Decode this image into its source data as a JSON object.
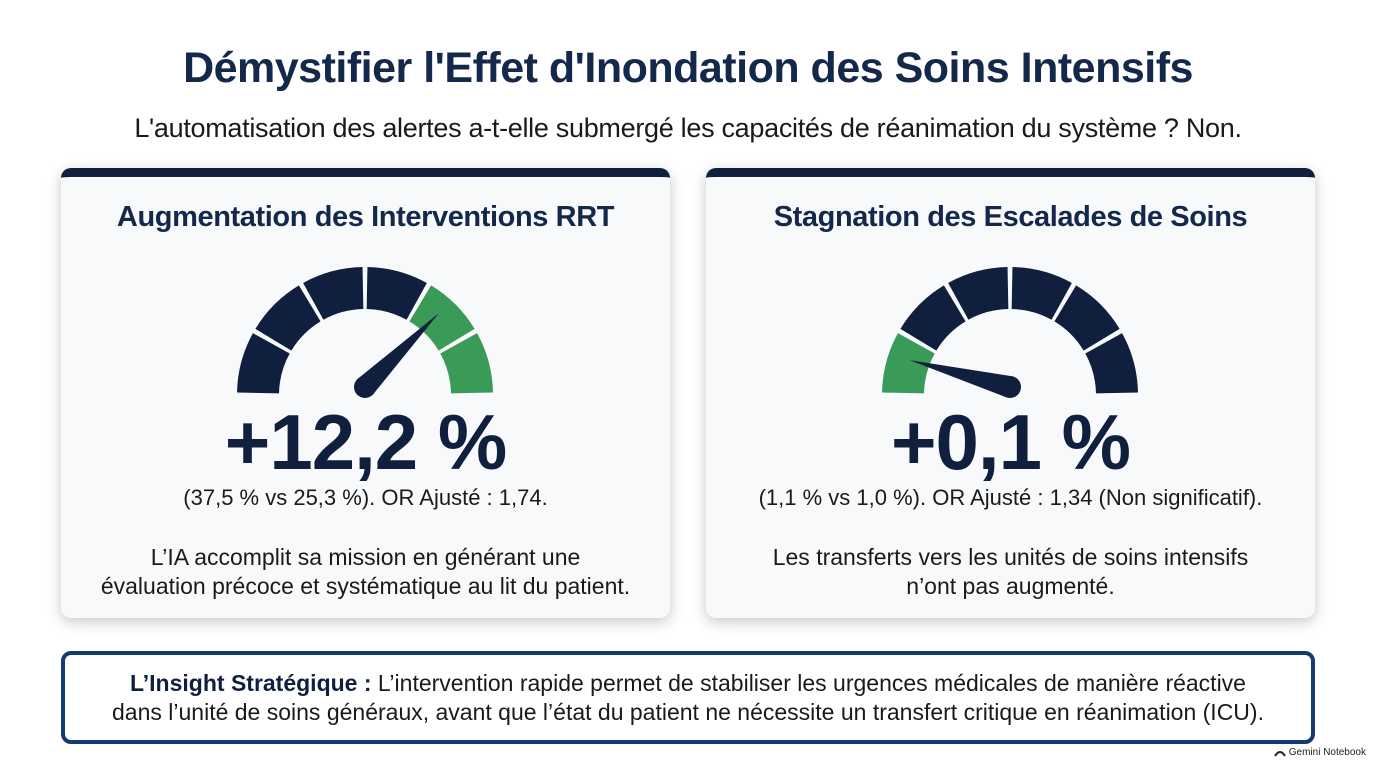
{
  "header": {
    "title": "Démystifier l'Effet d'Inondation des Soins Intensifs",
    "subtitle": "L'automatisation des alertes a-t-elle submergé les capacités de réanimation du système ? Non."
  },
  "cards": [
    {
      "title": "Augmentation des Interventions RRT",
      "value": "+12,2 %",
      "detail": "(37,5 % vs 25,3 %). OR Ajusté : 1,74.",
      "description_line1": "L’IA accomplit sa mission en générant une",
      "description_line2": "évaluation précoce et systématique au lit du patient."
    },
    {
      "title": "Stagnation des Escalades de Soins",
      "value": "+0,1 %",
      "detail": "(1,1 % vs 1,0 %). OR Ajusté : 1,34 (Non significatif).",
      "description_line1": "Les transferts vers les unités de soins intensifs",
      "description_line2": "n’ont pas augmenté."
    }
  ],
  "insight": {
    "label": "L’Insight Stratégique :",
    "text_line1": " L’intervention rapide permet de stabiliser les urgences médicales de manière réactive",
    "text_line2": "dans l’unité de soins généraux, avant que l’état du patient ne nécessite un transfert critique en réanimation (ICU)."
  },
  "branding": {
    "text": "Gemini Notebook",
    "icon": "gemini-notebook-icon"
  },
  "gauges": [
    {
      "segments": 6,
      "highlighted_segments": [
        4,
        5
      ],
      "needle_segment": 4
    },
    {
      "segments": 6,
      "highlighted_segments": [
        0
      ],
      "needle_segment": 0
    }
  ],
  "colors": {
    "navy": "#0f1f3d",
    "green": "#3a9a58",
    "insight_border": "#163a74"
  }
}
